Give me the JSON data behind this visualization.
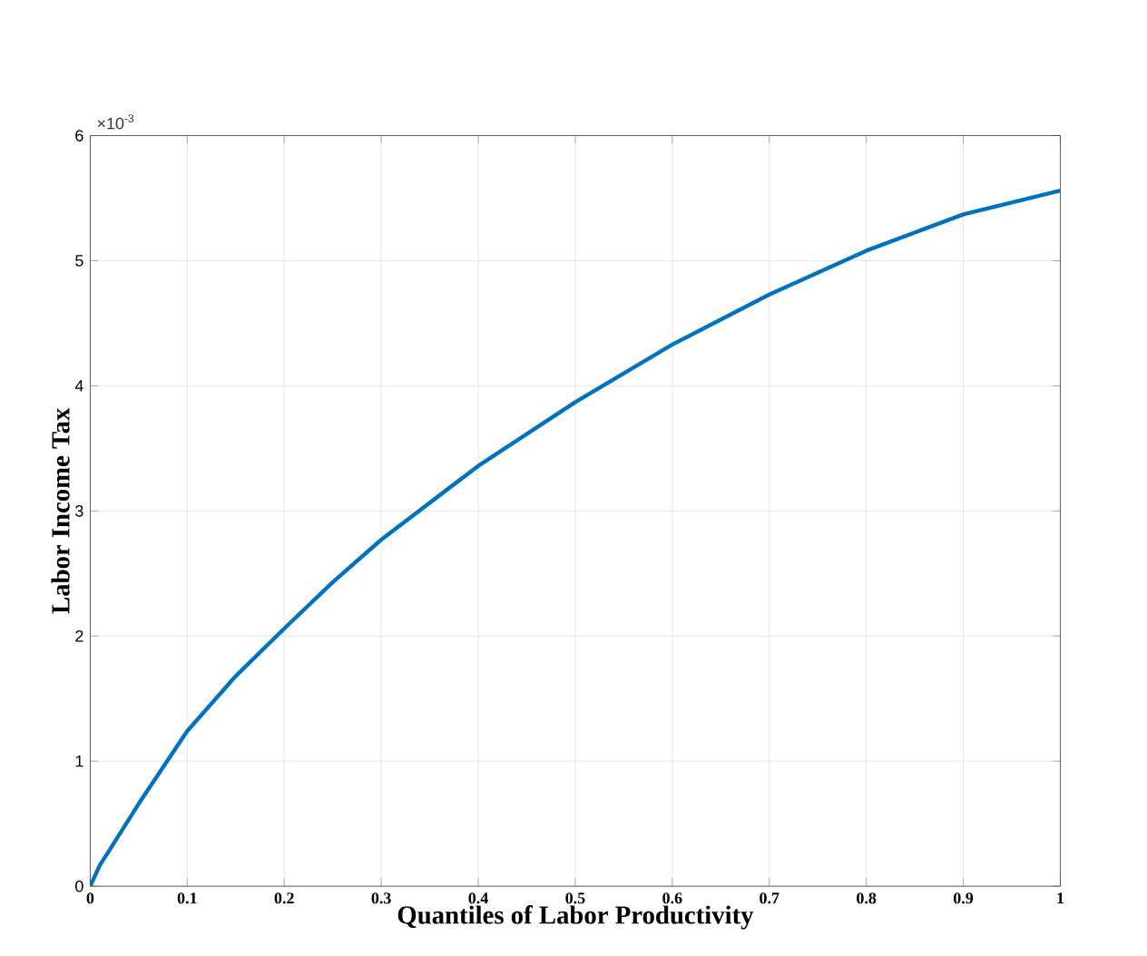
{
  "chart_data": {
    "type": "line",
    "xlabel": "Quantiles of Labor Productivity",
    "ylabel": "Labor Income Tax",
    "annotations": [
      "×10$^{-3}$"
    ],
    "x": [
      0,
      0.01,
      0.02,
      0.05,
      0.1,
      0.15,
      0.2,
      0.25,
      0.3,
      0.4,
      0.5,
      0.6,
      0.7,
      0.8,
      0.9,
      1.0
    ],
    "series": [
      {
        "color": "#0072bd",
        "values": [
          0,
          0.17,
          0.29,
          0.66,
          1.24,
          1.68,
          2.06,
          2.43,
          2.77,
          3.36,
          3.87,
          4.33,
          4.73,
          5.08,
          5.37,
          5.56
        ]
      }
    ],
    "xlim": [
      0,
      1
    ],
    "ylim": [
      0,
      6
    ],
    "xticks": [
      0,
      0.1,
      0.2,
      0.3,
      0.4,
      0.5,
      0.6,
      0.7,
      0.8,
      0.9,
      1
    ],
    "yticks": [
      0,
      1,
      2,
      3,
      4,
      5,
      6
    ],
    "grid": true,
    "line_style": "solid",
    "marker": "none"
  }
}
